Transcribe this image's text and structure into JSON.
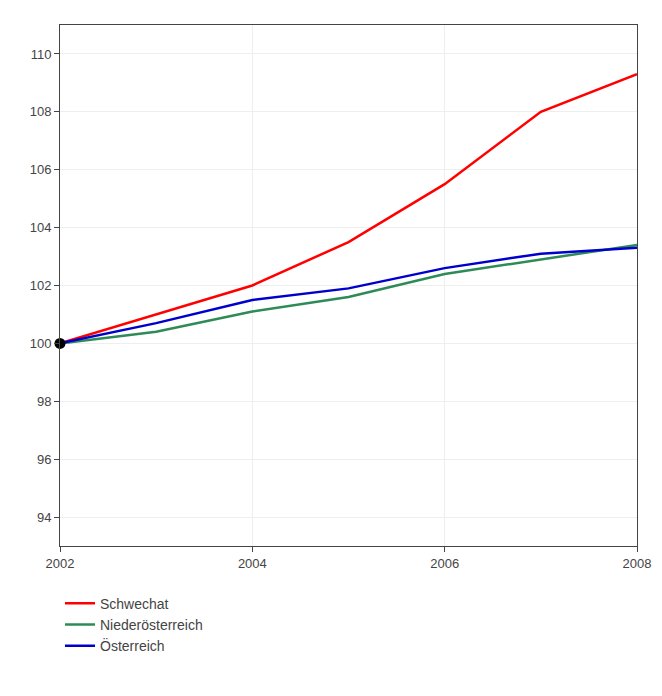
{
  "chart_data": {
    "type": "line",
    "x": [
      2002,
      2003,
      2004,
      2005,
      2006,
      2007,
      2008
    ],
    "series": [
      {
        "name": "Schwechat",
        "color": "#ff0000",
        "values": [
          100,
          101.0,
          102.0,
          103.5,
          105.5,
          108.0,
          109.3
        ]
      },
      {
        "name": "Niederösterreich",
        "color": "#2e8b57",
        "values": [
          100,
          100.4,
          101.1,
          101.6,
          102.4,
          102.9,
          103.4
        ]
      },
      {
        "name": "Österreich",
        "color": "#0000cc",
        "values": [
          100,
          100.7,
          101.5,
          101.9,
          102.6,
          103.1,
          103.3
        ]
      },
      {
        "type": "scatter",
        "marker": "circle",
        "color": "#000000",
        "x": [
          2002
        ],
        "values": [
          100
        ]
      }
    ],
    "xlim": [
      2002,
      2008
    ],
    "xticks": [
      2002,
      2004,
      2006,
      2008
    ],
    "ylim": [
      93,
      111
    ],
    "yticks": [
      94,
      96,
      98,
      100,
      102,
      104,
      106,
      108,
      110
    ],
    "grid": true,
    "legend": "bottom"
  }
}
